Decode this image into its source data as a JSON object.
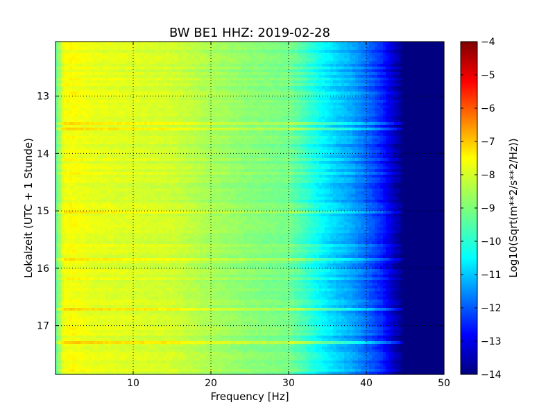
{
  "chart_data": {
    "type": "heatmap",
    "title": "BW BE1 HHZ: 2019-02-28",
    "xlabel": "Frequency [Hz]",
    "ylabel": "Lokalzeit (UTC + 1 Stunde)",
    "xlim": [
      0,
      50
    ],
    "ylim": [
      12.05,
      17.85
    ],
    "y_inverted": true,
    "x_ticks": [
      10,
      20,
      30,
      40,
      50
    ],
    "y_ticks": [
      13,
      14,
      15,
      16,
      17
    ],
    "grid": true,
    "colormap": "jet",
    "colorbar": {
      "label": "Log10(Sqrt(m**2/s**2/Hz))",
      "range": [
        -14,
        -4
      ],
      "ticks": [
        -4,
        -5,
        -6,
        -7,
        -8,
        -9,
        -10,
        -11,
        -12,
        -13,
        -14
      ]
    },
    "spectrum_profile": {
      "frequency_hz": [
        0,
        1,
        2,
        5,
        10,
        15,
        20,
        25,
        30,
        32,
        34,
        36,
        38,
        40,
        42,
        44,
        45,
        50
      ],
      "log10_amplitude": [
        -9.5,
        -7.9,
        -7.8,
        -8.0,
        -8.1,
        -8.2,
        -8.6,
        -8.9,
        -9.1,
        -9.6,
        -10.2,
        -10.7,
        -11.1,
        -11.7,
        -12.4,
        -13.6,
        -14,
        -14
      ]
    }
  }
}
